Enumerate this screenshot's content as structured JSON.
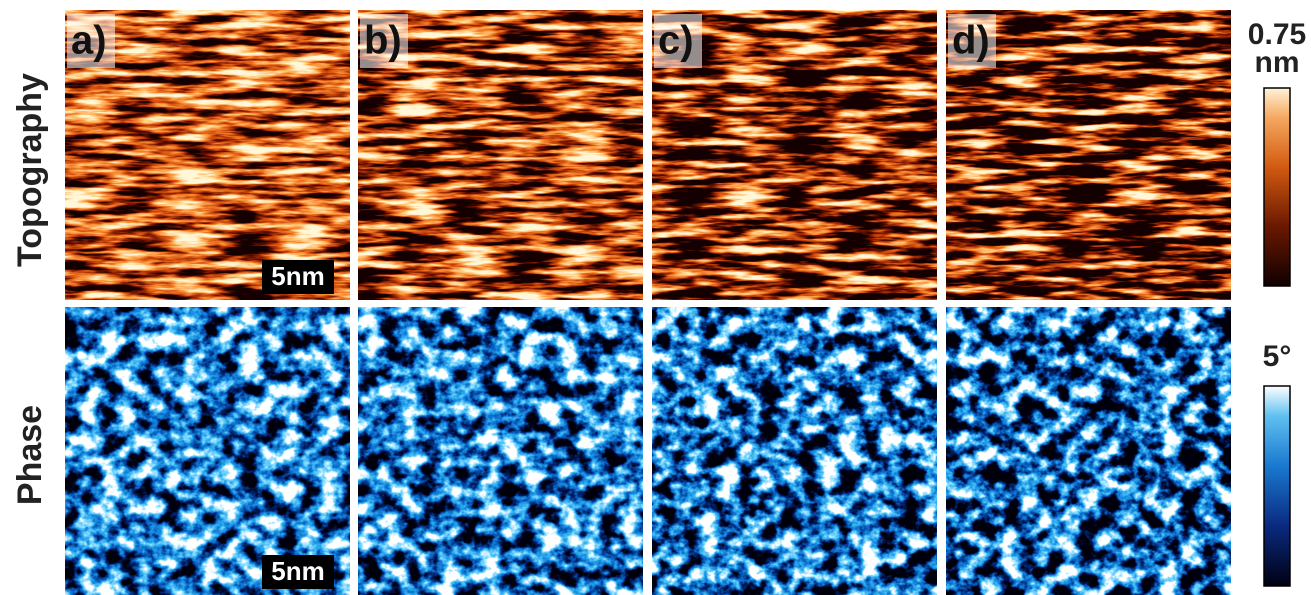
{
  "figure": {
    "panel_labels": [
      "a)",
      "b)",
      "c)",
      "d)"
    ],
    "row_labels": [
      "Topography",
      "Phase"
    ],
    "scale_bars": [
      "5nm",
      "5nm"
    ],
    "colorbars": [
      {
        "max_label": "0.75",
        "unit": "nm"
      },
      {
        "max_label": "5°"
      }
    ]
  }
}
